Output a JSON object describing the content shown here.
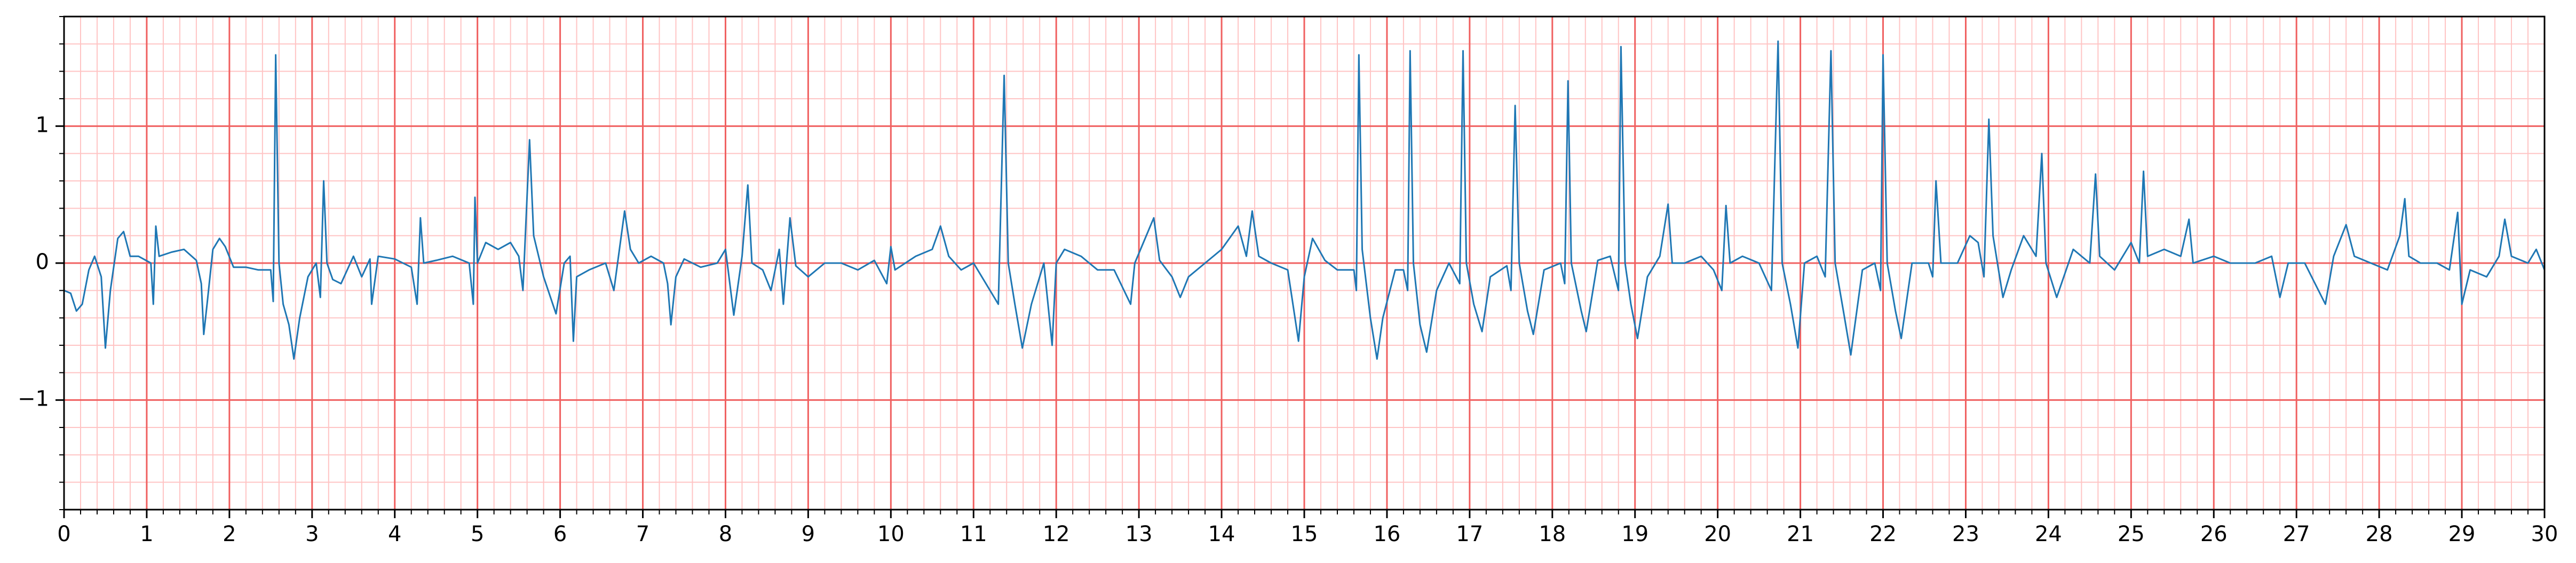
{
  "chart_data": {
    "type": "line",
    "x": [
      0,
      0.08,
      0.15,
      0.22,
      0.3,
      0.37,
      0.45,
      0.5,
      0.56,
      0.65,
      0.72,
      0.8,
      0.9,
      1.05,
      1.08,
      1.11,
      1.15,
      1.3,
      1.45,
      1.6,
      1.66,
      1.69,
      1.73,
      1.8,
      1.88,
      1.95,
      2.05,
      2.2,
      2.35,
      2.5,
      2.53,
      2.56,
      2.6,
      2.65,
      2.72,
      2.78,
      2.85,
      2.95,
      3.05,
      3.1,
      3.14,
      3.18,
      3.25,
      3.35,
      3.5,
      3.6,
      3.7,
      3.72,
      3.8,
      4.0,
      4.2,
      4.27,
      4.31,
      4.35,
      4.5,
      4.7,
      4.9,
      4.95,
      4.97,
      5.0,
      5.1,
      5.25,
      5.4,
      5.5,
      5.55,
      5.63,
      5.68,
      5.8,
      5.95,
      6.05,
      6.12,
      6.16,
      6.2,
      6.35,
      6.55,
      6.65,
      6.78,
      6.85,
      6.95,
      7.1,
      7.25,
      7.3,
      7.34,
      7.4,
      7.5,
      7.7,
      7.9,
      8.0,
      8.1,
      8.2,
      8.27,
      8.32,
      8.45,
      8.55,
      8.65,
      8.7,
      8.78,
      8.85,
      9.0,
      9.2,
      9.4,
      9.6,
      9.8,
      9.95,
      10.0,
      10.05,
      10.3,
      10.5,
      10.6,
      10.7,
      10.85,
      11.0,
      11.3,
      11.37,
      11.42,
      11.5,
      11.59,
      11.7,
      11.85,
      11.95,
      12.0,
      12.1,
      12.3,
      12.5,
      12.7,
      12.9,
      12.95,
      13.18,
      13.25,
      13.4,
      13.5,
      13.6,
      13.8,
      14.0,
      14.2,
      14.3,
      14.37,
      14.45,
      14.6,
      14.8,
      14.93,
      15.0,
      15.1,
      15.25,
      15.4,
      15.6,
      15.63,
      15.66,
      15.7,
      15.8,
      15.88,
      15.95,
      16.1,
      16.2,
      16.25,
      16.28,
      16.32,
      16.4,
      16.48,
      16.6,
      16.75,
      16.88,
      16.92,
      16.96,
      17.05,
      17.15,
      17.25,
      17.45,
      17.5,
      17.55,
      17.6,
      17.7,
      17.77,
      17.9,
      18.1,
      18.15,
      18.19,
      18.23,
      18.35,
      18.41,
      18.55,
      18.7,
      18.8,
      18.83,
      18.88,
      18.95,
      19.03,
      19.15,
      19.3,
      19.4,
      19.45,
      19.6,
      19.8,
      19.95,
      20.05,
      20.1,
      20.15,
      20.3,
      20.5,
      20.65,
      20.73,
      20.78,
      20.88,
      20.97,
      21.05,
      21.2,
      21.3,
      21.37,
      21.42,
      21.52,
      21.61,
      21.75,
      21.9,
      21.97,
      22.0,
      22.05,
      22.15,
      22.22,
      22.35,
      22.55,
      22.6,
      22.64,
      22.7,
      22.9,
      23.05,
      23.15,
      23.22,
      23.28,
      23.33,
      23.45,
      23.55,
      23.7,
      23.85,
      23.92,
      23.97,
      24.1,
      24.3,
      24.5,
      24.57,
      24.62,
      24.8,
      25.0,
      25.1,
      25.15,
      25.2,
      25.4,
      25.6,
      25.7,
      25.75,
      26.0,
      26.2,
      26.5,
      26.7,
      26.8,
      26.9,
      27.1,
      27.35,
      27.45,
      27.6,
      27.7,
      27.9,
      28.1,
      28.25,
      28.31,
      28.36,
      28.5,
      28.7,
      28.85,
      28.95,
      29.0,
      29.1,
      29.3,
      29.45,
      29.52,
      29.6,
      29.8,
      29.9,
      30.0
    ],
    "series": [
      {
        "color": "#1f77b4",
        "values": [
          -0.2,
          -0.22,
          -0.35,
          -0.3,
          -0.05,
          0.05,
          -0.1,
          -0.62,
          -0.2,
          0.18,
          0.23,
          0.05,
          0.05,
          0.0,
          -0.3,
          0.27,
          0.05,
          0.08,
          0.1,
          0.02,
          -0.15,
          -0.52,
          -0.3,
          0.1,
          0.18,
          0.12,
          -0.03,
          -0.03,
          -0.05,
          -0.05,
          -0.28,
          1.52,
          0.0,
          -0.3,
          -0.45,
          -0.7,
          -0.4,
          -0.1,
          0.0,
          -0.25,
          0.6,
          0.0,
          -0.12,
          -0.15,
          0.05,
          -0.1,
          0.03,
          -0.3,
          0.05,
          0.03,
          -0.03,
          -0.3,
          0.33,
          0.0,
          0.02,
          0.05,
          0.0,
          -0.3,
          0.48,
          0.0,
          0.15,
          0.1,
          0.15,
          0.05,
          -0.2,
          0.9,
          0.2,
          -0.1,
          -0.37,
          0.0,
          0.05,
          -0.57,
          -0.1,
          -0.05,
          0.0,
          -0.2,
          0.38,
          0.1,
          0.0,
          0.05,
          0.0,
          -0.15,
          -0.45,
          -0.1,
          0.03,
          -0.03,
          0.0,
          0.1,
          -0.38,
          0.05,
          0.57,
          0.0,
          -0.05,
          -0.2,
          0.1,
          -0.3,
          0.33,
          -0.02,
          -0.1,
          0.0,
          0.0,
          -0.05,
          0.02,
          -0.15,
          0.12,
          -0.05,
          0.05,
          0.1,
          0.27,
          0.05,
          -0.05,
          0.0,
          -0.3,
          1.37,
          0.0,
          -0.3,
          -0.62,
          -0.3,
          0.0,
          -0.6,
          0.0,
          0.1,
          0.05,
          -0.05,
          -0.05,
          -0.3,
          0.0,
          0.33,
          0.02,
          -0.1,
          -0.25,
          -0.1,
          0.0,
          0.1,
          0.27,
          0.05,
          0.38,
          0.05,
          0.0,
          -0.05,
          -0.57,
          -0.1,
          0.18,
          0.02,
          -0.05,
          -0.05,
          -0.2,
          1.52,
          0.1,
          -0.4,
          -0.7,
          -0.4,
          -0.05,
          -0.05,
          -0.2,
          1.55,
          0.0,
          -0.45,
          -0.65,
          -0.2,
          0.0,
          -0.15,
          1.55,
          0.0,
          -0.3,
          -0.5,
          -0.1,
          -0.02,
          -0.2,
          1.15,
          0.0,
          -0.35,
          -0.52,
          -0.05,
          0.0,
          -0.15,
          1.33,
          0.0,
          -0.35,
          -0.5,
          0.02,
          0.05,
          -0.2,
          1.58,
          0.0,
          -0.3,
          -0.55,
          -0.1,
          0.05,
          0.43,
          0.0,
          0.0,
          0.05,
          -0.05,
          -0.2,
          0.42,
          0.0,
          0.05,
          0.0,
          -0.2,
          1.62,
          0.0,
          -0.3,
          -0.62,
          0.0,
          0.05,
          -0.1,
          1.55,
          0.0,
          -0.35,
          -0.67,
          -0.05,
          0.0,
          -0.2,
          1.52,
          0.0,
          -0.35,
          -0.55,
          0.0,
          0.0,
          -0.1,
          0.6,
          0.0,
          0.0,
          0.2,
          0.15,
          -0.1,
          1.05,
          0.2,
          -0.25,
          -0.05,
          0.2,
          0.05,
          0.8,
          0.0,
          -0.25,
          0.1,
          0.0,
          0.65,
          0.05,
          -0.05,
          0.15,
          0.0,
          0.67,
          0.05,
          0.1,
          0.05,
          0.32,
          0.0,
          0.05,
          0.0,
          0.0,
          0.05,
          -0.25,
          0.0,
          0.0,
          -0.3,
          0.05,
          0.28,
          0.05,
          0.0,
          -0.05,
          0.2,
          0.47,
          0.05,
          0.0,
          0.0,
          -0.05,
          0.37,
          -0.3,
          -0.05,
          -0.1,
          0.05,
          0.32,
          0.05,
          0.0,
          0.1,
          -0.05
        ]
      }
    ],
    "xlim": [
      0,
      30
    ],
    "ylim": [
      -1.8,
      1.8
    ],
    "xticks": [
      0,
      1,
      2,
      3,
      4,
      5,
      6,
      7,
      8,
      9,
      10,
      11,
      12,
      13,
      14,
      15,
      16,
      17,
      18,
      19,
      20,
      21,
      22,
      23,
      24,
      25,
      26,
      27,
      28,
      29,
      30
    ],
    "yticks": [
      {
        "value": -1,
        "label": "−1"
      },
      0,
      1
    ],
    "grid": true,
    "grid_color": "#f06060",
    "minor_grid_color": "#ffc4c4",
    "minor_step": [
      0.2,
      0.2
    ]
  }
}
